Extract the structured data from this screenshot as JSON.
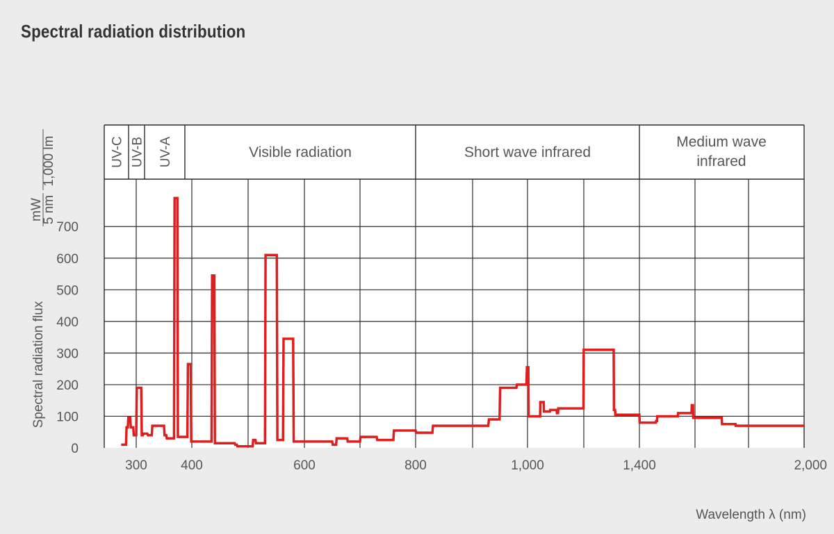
{
  "chart_data": {
    "type": "line",
    "title": "Spectral radiation distribution",
    "xlabel": "Wavelength λ (nm)",
    "ylabel": "Spectral radiation flux",
    "yunit_num": "mW",
    "yunit_den": "5 nm",
    "yunit_extra": "1,000 lm",
    "x_ticks": [
      300,
      400,
      600,
      800,
      "1,000",
      "1,400",
      "2,000"
    ],
    "y_ticks": [
      0,
      100,
      200,
      300,
      400,
      500,
      600,
      700
    ],
    "bands": [
      {
        "label": "UV-C"
      },
      {
        "label": "UV-B"
      },
      {
        "label": "UV-A"
      },
      {
        "label": "Visible radiation"
      },
      {
        "label": "Short wave infrared"
      },
      {
        "label": "Medium wave infrared",
        "lines": [
          "Medium wave",
          "infrared"
        ]
      }
    ],
    "grid": true,
    "ylim": [
      0,
      780
    ],
    "series": [
      {
        "color": "#dd1f1f",
        "x": [
          275,
          283,
          284,
          286,
          287,
          290,
          291,
          295,
          296,
          300,
          301,
          309,
          310,
          312,
          313,
          320,
          321,
          328,
          329,
          350,
          351,
          354,
          355,
          368,
          369,
          374,
          375,
          392,
          393,
          398,
          399,
          435,
          436,
          440,
          441,
          476,
          477,
          480,
          481,
          508,
          509,
          513,
          514,
          530,
          531,
          551,
          552,
          562,
          563,
          580,
          581,
          650,
          651,
          657,
          658,
          677,
          678,
          700,
          701,
          730,
          731,
          760,
          761,
          800,
          801,
          830,
          831,
          930,
          931,
          950,
          951,
          980,
          981,
          998,
          999,
          1003,
          1004,
          1045,
          1046,
          1058,
          1059,
          1080,
          1081,
          1104,
          1105,
          1109,
          1110,
          1200,
          1201,
          1308,
          1309,
          1313,
          1314,
          1400,
          1401,
          1460,
          1461,
          1464,
          1465,
          1540,
          1541,
          1590,
          1591,
          1595,
          1596,
          1700,
          1701,
          1750,
          1751,
          2000
        ],
        "y": [
          10,
          10,
          65,
          65,
          95,
          95,
          65,
          65,
          40,
          40,
          190,
          190,
          40,
          40,
          45,
          45,
          40,
          40,
          70,
          70,
          40,
          40,
          30,
          30,
          790,
          790,
          35,
          35,
          265,
          265,
          20,
          20,
          545,
          545,
          15,
          15,
          10,
          10,
          5,
          5,
          25,
          25,
          15,
          15,
          610,
          610,
          25,
          25,
          345,
          345,
          20,
          20,
          10,
          10,
          30,
          30,
          20,
          20,
          35,
          35,
          25,
          25,
          55,
          55,
          48,
          48,
          70,
          70,
          90,
          90,
          190,
          190,
          200,
          200,
          255,
          255,
          100,
          100,
          145,
          145,
          115,
          115,
          120,
          120,
          110,
          110,
          125,
          125,
          310,
          310,
          120,
          120,
          105,
          105,
          80,
          80,
          85,
          85,
          100,
          100,
          110,
          110,
          135,
          135,
          95,
          95,
          75,
          75,
          70,
          70
        ]
      }
    ]
  }
}
